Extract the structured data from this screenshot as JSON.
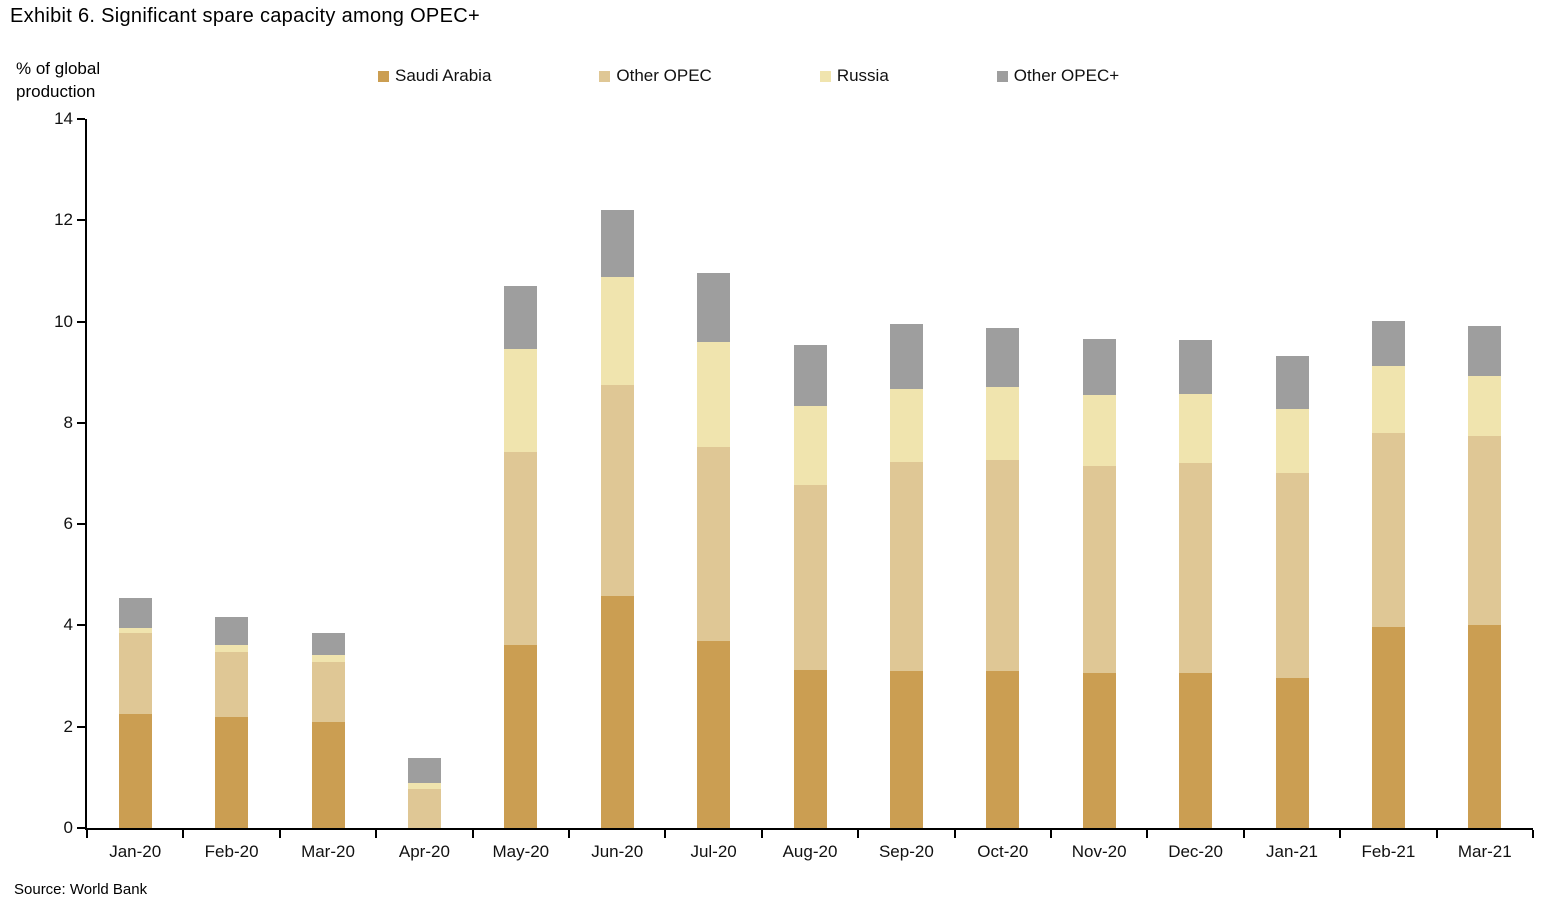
{
  "page": {
    "title": "Exhibit 6. Significant spare capacity among OPEC+",
    "source": "Source: World Bank"
  },
  "chart_data": {
    "type": "bar",
    "stacked": true,
    "title": "Exhibit 6. Significant spare capacity among OPEC+",
    "ylabel": "% of global production",
    "xlabel": "",
    "ylim": [
      0,
      14
    ],
    "ytick_step": 2,
    "grid": false,
    "legend_position": "top",
    "background": "#ffffff",
    "axis_color": "#000000",
    "categories": [
      "Jan-20",
      "Feb-20",
      "Mar-20",
      "Apr-20",
      "May-20",
      "Jun-20",
      "Jul-20",
      "Aug-20",
      "Sep-20",
      "Oct-20",
      "Nov-20",
      "Dec-20",
      "Jan-21",
      "Feb-21",
      "Mar-21"
    ],
    "series": [
      {
        "name": "Saudi Arabia",
        "color": "#CB9E52",
        "values": [
          2.25,
          2.2,
          2.1,
          0.0,
          3.62,
          4.58,
          3.7,
          3.13,
          3.1,
          3.1,
          3.07,
          3.06,
          2.96,
          3.97,
          4.0
        ]
      },
      {
        "name": "Other OPEC",
        "color": "#DFC795",
        "values": [
          1.6,
          1.27,
          1.17,
          0.78,
          3.8,
          4.17,
          3.82,
          3.64,
          4.12,
          4.17,
          4.08,
          4.14,
          4.06,
          3.83,
          3.75
        ]
      },
      {
        "name": "Russia",
        "color": "#F0E4AE",
        "values": [
          0.1,
          0.15,
          0.15,
          0.1,
          2.05,
          2.13,
          2.08,
          1.56,
          1.45,
          1.43,
          1.4,
          1.36,
          1.26,
          1.32,
          1.18
        ]
      },
      {
        "name": "Other OPEC+",
        "color": "#9E9E9E",
        "values": [
          0.6,
          0.55,
          0.43,
          0.5,
          1.23,
          1.32,
          1.35,
          1.2,
          1.28,
          1.17,
          1.1,
          1.07,
          1.04,
          0.9,
          0.99
        ]
      }
    ],
    "totals": [
      4.55,
      4.17,
      3.85,
      1.38,
      10.7,
      12.2,
      10.95,
      9.53,
      9.95,
      9.87,
      9.65,
      9.63,
      9.32,
      10.02,
      9.92
    ],
    "source": "Source: World Bank"
  }
}
